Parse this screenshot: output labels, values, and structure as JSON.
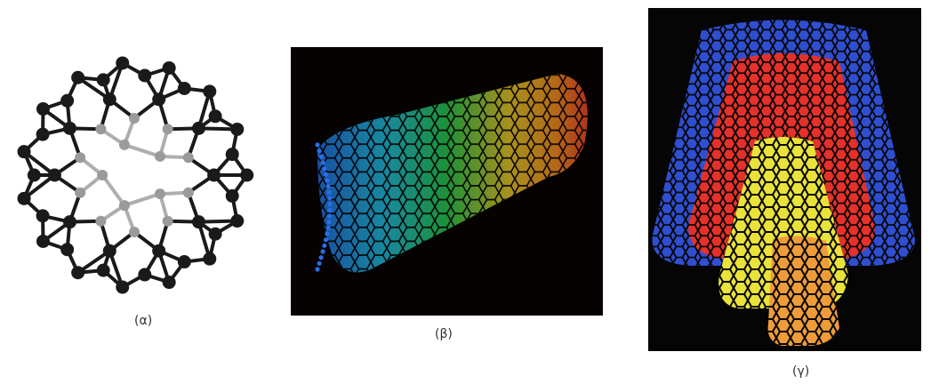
{
  "figure": {
    "panels": [
      {
        "caption": "(α)",
        "structure_icon": "buckyball-fullerene-icon",
        "background": "#ffffff",
        "atom_color": "#1a1a1a"
      },
      {
        "caption": "(β)",
        "structure_icon": "single-wall-nanotube-icon",
        "background": "#060202",
        "gradient": [
          "#1f4fd8",
          "#21b6d6",
          "#27c24a",
          "#e2c229",
          "#f08b1f",
          "#e8262a"
        ]
      },
      {
        "caption": "(γ)",
        "structure_icon": "multi-wall-nanotube-icon",
        "background": "#050505",
        "layers": [
          "#2f4fd0",
          "#e5312a",
          "#e8e23a",
          "#ee9c3a"
        ]
      }
    ]
  }
}
